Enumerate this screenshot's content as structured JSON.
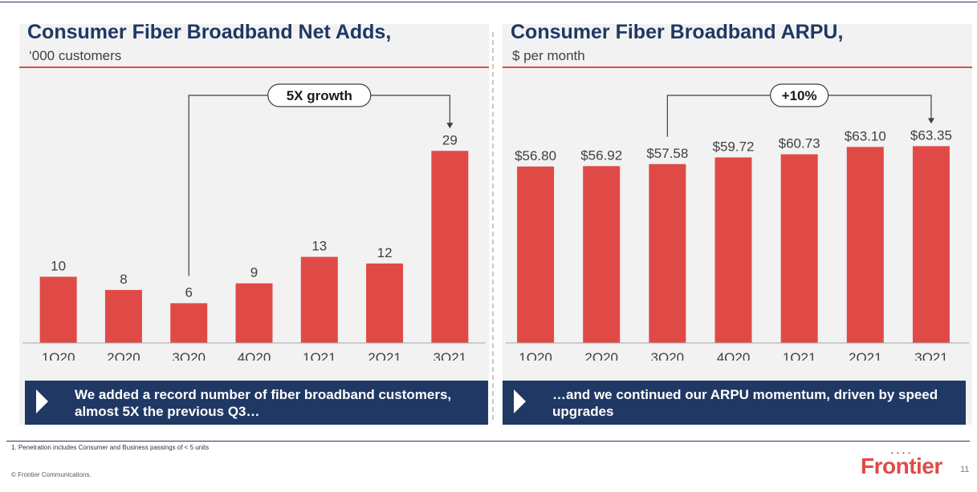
{
  "left": {
    "title": "Consumer Fiber Broadband Net Adds,",
    "subtitle": "‘000 customers",
    "callout": "We added a record number of fiber broadband customers, almost 5X the previous Q3…"
  },
  "right": {
    "title": "Consumer Fiber Broadband ARPU,",
    "subtitle": "$ per month",
    "callout": "…and we continued our ARPU momentum, driven by speed upgrades"
  },
  "chart_data": [
    {
      "type": "bar",
      "title": "Consumer Fiber Broadband Net Adds,",
      "subtitle": "‘000 customers",
      "categories": [
        "1Q20",
        "2Q20",
        "3Q20",
        "4Q20",
        "1Q21",
        "2Q21",
        "3Q21"
      ],
      "values": [
        10,
        8,
        6,
        9,
        13,
        12,
        29
      ],
      "labels": [
        "10",
        "8",
        "6",
        "9",
        "13",
        "12",
        "29"
      ],
      "ylim": [
        0,
        30
      ],
      "grid": false,
      "bar_color": "#e04a46",
      "annotation": {
        "text": "5X growth",
        "from": "3Q20",
        "to": "3Q21"
      }
    },
    {
      "type": "bar",
      "title": "Consumer Fiber Broadband ARPU,",
      "subtitle": "$ per month",
      "categories": [
        "1Q20",
        "2Q20",
        "3Q20",
        "4Q20",
        "1Q21",
        "2Q21",
        "3Q21"
      ],
      "values": [
        56.8,
        56.92,
        57.58,
        59.72,
        60.73,
        63.1,
        63.35
      ],
      "labels": [
        "$56.80",
        "$56.92",
        "$57.58",
        "$59.72",
        "$60.73",
        "$63.10",
        "$63.35"
      ],
      "ylim": [
        0,
        65
      ],
      "grid": false,
      "bar_color": "#e04a46",
      "annotation": {
        "text": "+10%",
        "from": "3Q20",
        "to": "3Q21"
      }
    }
  ],
  "footer": {
    "footnote": "1. Penetration includes Consumer and Business passings of < 5 units",
    "copyright": "© Frontier Communications.",
    "logo": "Frontier",
    "page": "11"
  },
  "colors": {
    "navy": "#1f3864",
    "red": "#e04a46",
    "panel": "#f2f2f2"
  }
}
